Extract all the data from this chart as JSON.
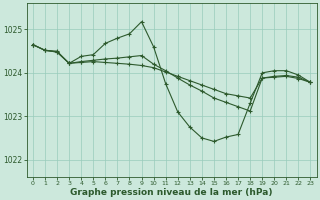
{
  "bg_color": "#cce8dc",
  "grid_color": "#99ccbb",
  "line_color": "#2d5a2d",
  "xlabel": "Graphe pression niveau de la mer (hPa)",
  "xlabel_fontsize": 6.5,
  "ylim": [
    1021.6,
    1025.6
  ],
  "xlim": [
    -0.5,
    23.5
  ],
  "yticks": [
    1022,
    1023,
    1024,
    1025
  ],
  "xticks": [
    0,
    1,
    2,
    3,
    4,
    5,
    6,
    7,
    8,
    9,
    10,
    11,
    12,
    13,
    14,
    15,
    16,
    17,
    18,
    19,
    20,
    21,
    22,
    23
  ],
  "line1_x": [
    0,
    1,
    2,
    3,
    4,
    5,
    6,
    7,
    8,
    9,
    10,
    11,
    12,
    13,
    14,
    15,
    16,
    17,
    18,
    19,
    20,
    21,
    22,
    23
  ],
  "line1_y": [
    1024.65,
    1024.52,
    1024.5,
    1024.22,
    1024.38,
    1024.42,
    1024.68,
    1024.8,
    1024.9,
    1025.18,
    1024.6,
    1023.75,
    1023.1,
    1022.75,
    1022.5,
    1022.42,
    1022.52,
    1022.58,
    1023.3,
    1024.0,
    1024.05,
    1024.05,
    1023.95,
    1023.78
  ],
  "line2_x": [
    0,
    1,
    2,
    3,
    4,
    5,
    6,
    7,
    8,
    9,
    10,
    11,
    12,
    13,
    14,
    15,
    16,
    17,
    18,
    19,
    20,
    21,
    22,
    23
  ],
  "line2_y": [
    1024.65,
    1024.52,
    1024.48,
    1024.22,
    1024.26,
    1024.29,
    1024.32,
    1024.34,
    1024.37,
    1024.4,
    1024.2,
    1024.05,
    1023.88,
    1023.72,
    1023.58,
    1023.42,
    1023.32,
    1023.22,
    1023.12,
    1023.88,
    1023.92,
    1023.94,
    1023.9,
    1023.78
  ],
  "line3_x": [
    0,
    1,
    2,
    3,
    4,
    5,
    6,
    7,
    8,
    9,
    10,
    11,
    12,
    13,
    14,
    15,
    16,
    17,
    18,
    19,
    20,
    21,
    22,
    23
  ],
  "line3_y": [
    1024.65,
    1024.52,
    1024.48,
    1024.22,
    1024.24,
    1024.26,
    1024.24,
    1024.22,
    1024.2,
    1024.17,
    1024.12,
    1024.02,
    1023.92,
    1023.82,
    1023.72,
    1023.62,
    1023.52,
    1023.47,
    1023.42,
    1023.88,
    1023.9,
    1023.92,
    1023.87,
    1023.78
  ]
}
